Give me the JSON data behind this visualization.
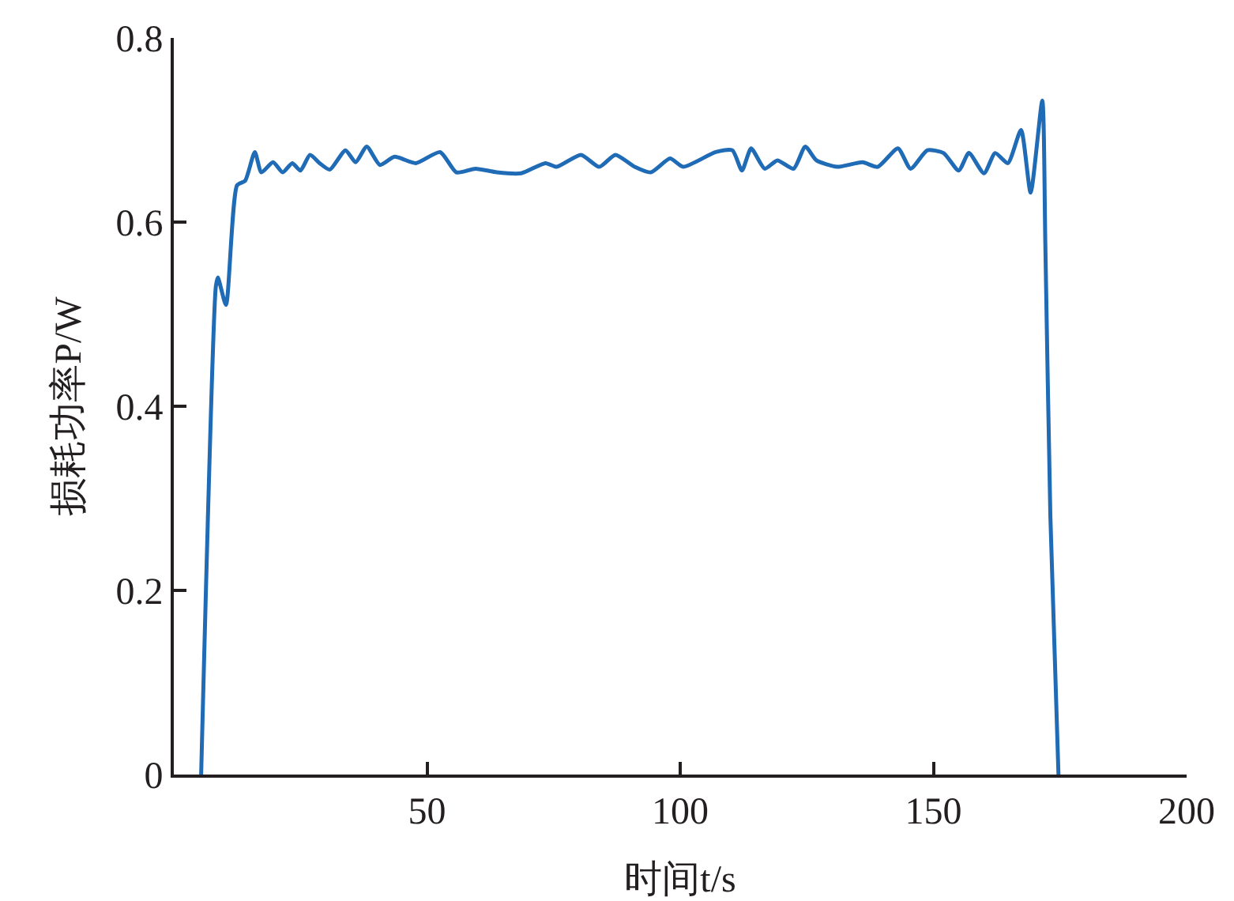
{
  "chart_data": {
    "type": "line",
    "xlabel": "时间t/s",
    "ylabel": "损耗功率P/W",
    "xlim": [
      0,
      200
    ],
    "xticks": [
      50,
      100,
      150,
      200
    ],
    "ylim": [
      0,
      0.8
    ],
    "yticks": [
      0,
      0.2,
      0.4,
      0.6,
      0.8
    ],
    "grid": false,
    "marker": "none",
    "line_style": "solid",
    "x": [
      5.4,
      8.3,
      8.7,
      10.3,
      12.5,
      14.1,
      16,
      17.3,
      19.6,
      21.5,
      23.4,
      25,
      26.9,
      28.8,
      30.8,
      33.9,
      35.9,
      38.1,
      40.7,
      43.6,
      47.8,
      52.6,
      55.8,
      59.6,
      63.8,
      68.6,
      73.4,
      75.6,
      80.4,
      84,
      87.2,
      91,
      94.2,
      98,
      100.6,
      107,
      110.3,
      112.2,
      114,
      116.7,
      119.2,
      122.4,
      124.7,
      126.9,
      131,
      136,
      139,
      143,
      145.5,
      148.8,
      152,
      155,
      157,
      160,
      162.2,
      164.7,
      167.3,
      169.2,
      171.5,
      172.1,
      173.1,
      174.7
    ],
    "series": [
      {
        "color": "#1f6bb5",
        "values": [
          0,
          0.53,
          0.54,
          0.51,
          0.64,
          0.645,
          0.676,
          0.654,
          0.665,
          0.654,
          0.664,
          0.656,
          0.673,
          0.664,
          0.657,
          0.678,
          0.665,
          0.682,
          0.662,
          0.671,
          0.664,
          0.676,
          0.654,
          0.658,
          0.654,
          0.653,
          0.664,
          0.66,
          0.673,
          0.66,
          0.673,
          0.66,
          0.654,
          0.669,
          0.66,
          0.676,
          0.678,
          0.656,
          0.68,
          0.658,
          0.667,
          0.658,
          0.682,
          0.667,
          0.66,
          0.665,
          0.66,
          0.68,
          0.658,
          0.678,
          0.675,
          0.656,
          0.675,
          0.653,
          0.675,
          0.664,
          0.7,
          0.632,
          0.732,
          0.577,
          0.28,
          0
        ]
      }
    ]
  }
}
